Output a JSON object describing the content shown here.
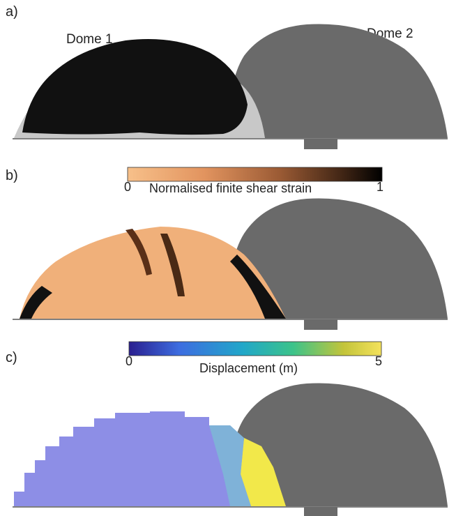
{
  "panels": [
    {
      "label": "a)"
    },
    {
      "label": "b)"
    },
    {
      "label": "c)"
    }
  ],
  "dome_labels": {
    "dome1": "Dome 1",
    "dome2": "Dome 2"
  },
  "colorbar_b": {
    "min": "0",
    "max": "1",
    "title": "Normalised finite shear strain",
    "colors": [
      "#f7c08a",
      "#e2945f",
      "#9a5a34",
      "#3e2414",
      "#000000"
    ]
  },
  "colorbar_c": {
    "min": "0",
    "max": "5",
    "title": "Displacement (m)",
    "colors": [
      "#2a1f8f",
      "#3d6de0",
      "#21a7c9",
      "#3cc38a",
      "#c3c43a",
      "#f4e25c"
    ]
  },
  "colors": {
    "dome1_dark": "#111111",
    "dome1_light": "#c8c8c8",
    "dome2": "#6a6a6a",
    "strain_base": "#f0b07a",
    "disp_base": "#8d8ee6",
    "disp_hot": "#f2e84a"
  }
}
